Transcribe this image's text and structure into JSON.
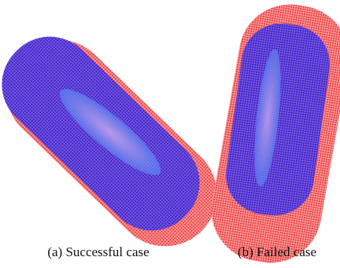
{
  "figures": [
    {
      "caption": "(a) Successful case"
    },
    {
      "caption": "(b) Failed case"
    }
  ]
}
